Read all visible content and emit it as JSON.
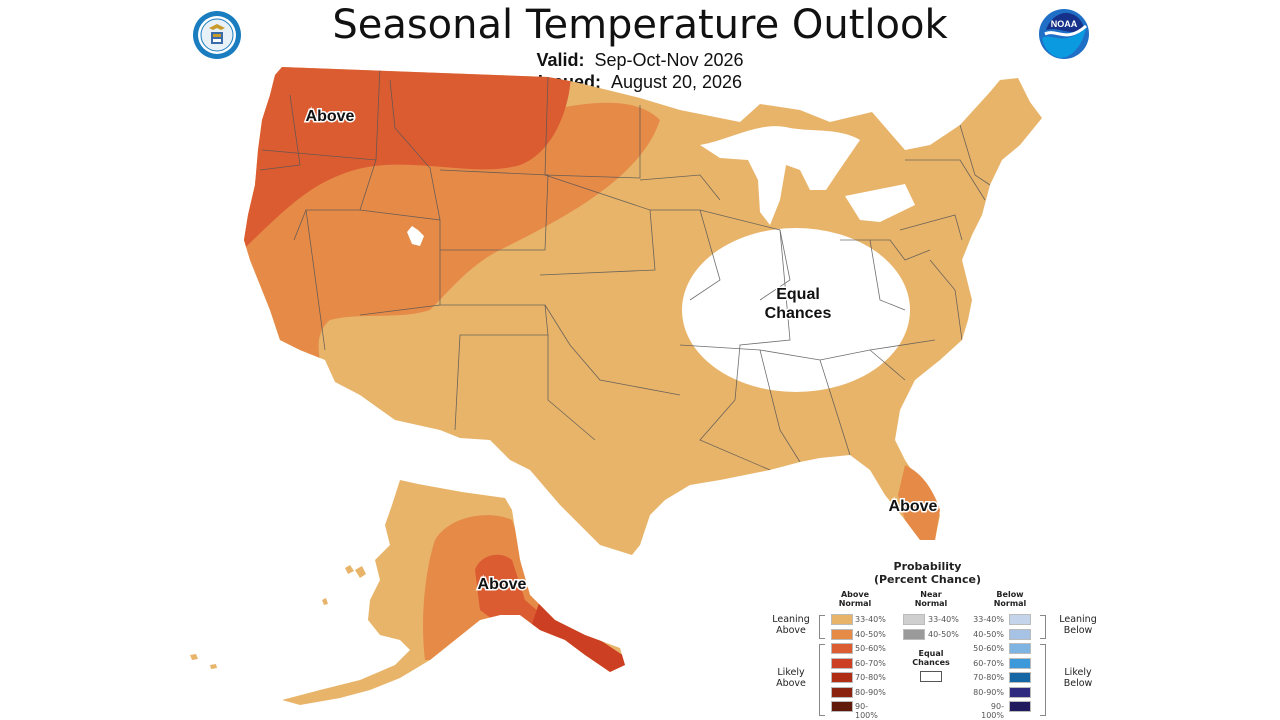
{
  "title": "Seasonal Temperature Outlook",
  "valid_label": "Valid:",
  "valid_value": "Sep-Oct-Nov 2026",
  "issued_label": "Issued:",
  "issued_value": "August 20, 2026",
  "map_labels": {
    "northwest": "Above",
    "equal_chances_1": "Equal",
    "equal_chances_2": "Chances",
    "florida": "Above",
    "alaska": "Above"
  },
  "logos": {
    "left": "commerce-seal-icon",
    "right": "noaa-logo-icon"
  },
  "legend": {
    "title_1": "Probability",
    "title_2": "(Percent Chance)",
    "above_header": [
      "Above",
      "Normal"
    ],
    "near_header": [
      "Near",
      "Normal"
    ],
    "below_header": [
      "Below",
      "Normal"
    ],
    "above_rows": [
      {
        "label": "33-40%",
        "color": "#e8b46a"
      },
      {
        "label": "40-50%",
        "color": "#e68a48"
      },
      {
        "label": "50-60%",
        "color": "#dc5c32"
      },
      {
        "label": "60-70%",
        "color": "#cc3f22"
      },
      {
        "label": "70-80%",
        "color": "#b02e16"
      },
      {
        "label": "80-90%",
        "color": "#8a2410"
      },
      {
        "label": "90-100%",
        "color": "#611a0a"
      }
    ],
    "near_rows": [
      {
        "label": "33-40%",
        "color": "#cfcfcf"
      },
      {
        "label": "40-50%",
        "color": "#9a9a9a"
      }
    ],
    "below_rows": [
      {
        "label": "33-40%",
        "color": "#c4d4ea"
      },
      {
        "label": "40-50%",
        "color": "#a6c2e4"
      },
      {
        "label": "50-60%",
        "color": "#7fb4e2"
      },
      {
        "label": "60-70%",
        "color": "#3c9ada"
      },
      {
        "label": "70-80%",
        "color": "#1466a4"
      },
      {
        "label": "80-90%",
        "color": "#2e2a80"
      },
      {
        "label": "90-100%",
        "color": "#221c5e"
      }
    ],
    "equal_chances": [
      "Equal",
      "Chances"
    ],
    "leaning_above": [
      "Leaning",
      "Above"
    ],
    "likely_above": [
      "Likely",
      "Above"
    ],
    "leaning_below": [
      "Leaning",
      "Below"
    ],
    "likely_below": [
      "Likely",
      "Below"
    ]
  }
}
